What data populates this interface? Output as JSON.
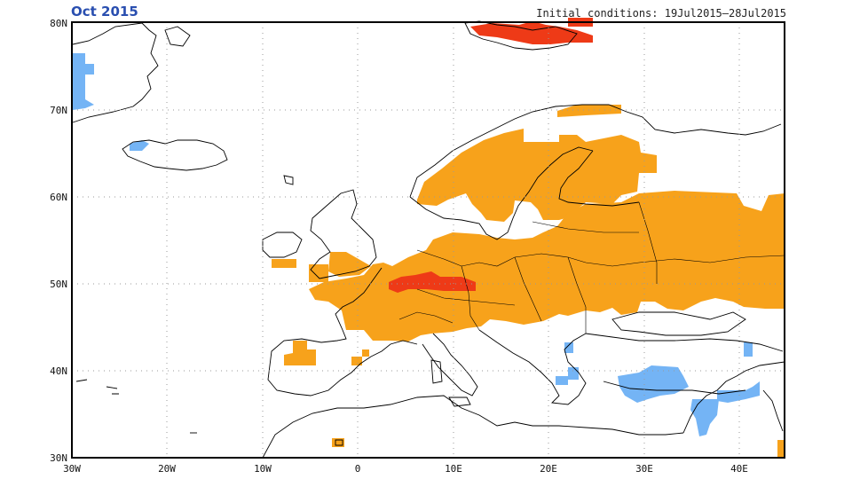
{
  "title": "Oct 2015",
  "initial_conditions": "Initial conditions: 19Jul2015–28Jul2015",
  "axes": {
    "lon_ticks": [
      "30W",
      "20W",
      "10W",
      "0",
      "10E",
      "20E",
      "30E",
      "40E"
    ],
    "lat_ticks": [
      "30N",
      "40N",
      "50N",
      "60N",
      "70N",
      "80N"
    ],
    "lon_range": [
      -30,
      45
    ],
    "lat_range": [
      30,
      80
    ],
    "grid": "dotted"
  },
  "colors": {
    "frame": "#000000",
    "grid": "#9a9a9a",
    "coast": "#000000",
    "warm_moderate": "#f7a21b",
    "warm_strong": "#ee3a17",
    "cool": "#74b4f5",
    "title": "#2a4fb0"
  },
  "regions": [
    {
      "name": "orange",
      "category": "warm_moderate"
    },
    {
      "name": "red",
      "category": "warm_strong"
    },
    {
      "name": "blue",
      "category": "cool"
    }
  ]
}
